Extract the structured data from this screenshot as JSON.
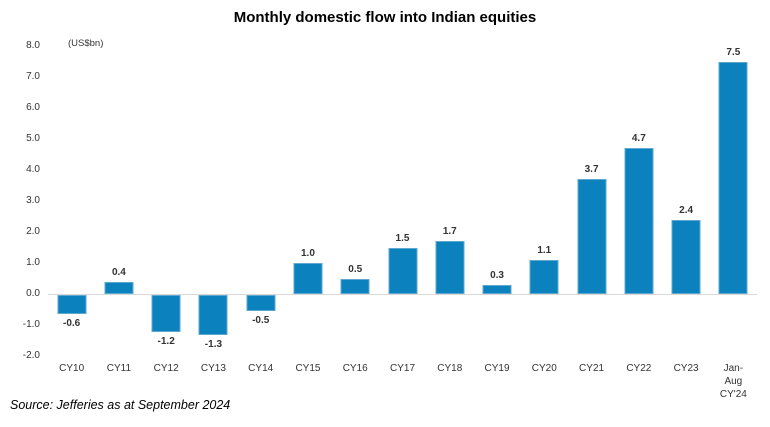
{
  "chart_data": {
    "type": "bar",
    "title": "Monthly domestic flow into Indian equities",
    "unit_label": "(US$bn)",
    "categories": [
      "CY10",
      "CY11",
      "CY12",
      "CY13",
      "CY14",
      "CY15",
      "CY16",
      "CY17",
      "CY18",
      "CY19",
      "CY20",
      "CY21",
      "CY22",
      "CY23",
      "Jan-Aug\nCY'24"
    ],
    "values": [
      -0.6,
      0.4,
      -1.2,
      -1.3,
      -0.5,
      1.0,
      0.5,
      1.5,
      1.7,
      0.3,
      1.1,
      3.7,
      4.7,
      2.4,
      7.5
    ],
    "ylim": [
      -2.0,
      8.0
    ],
    "ytick_step": 1.0,
    "grid": false,
    "legend": "none",
    "bar_color": "#0b82be",
    "bar_border_color": "#5ea8d0",
    "zero_line_color": "#d9d9d9",
    "source": "Source: Jefferies as at September 2024"
  }
}
